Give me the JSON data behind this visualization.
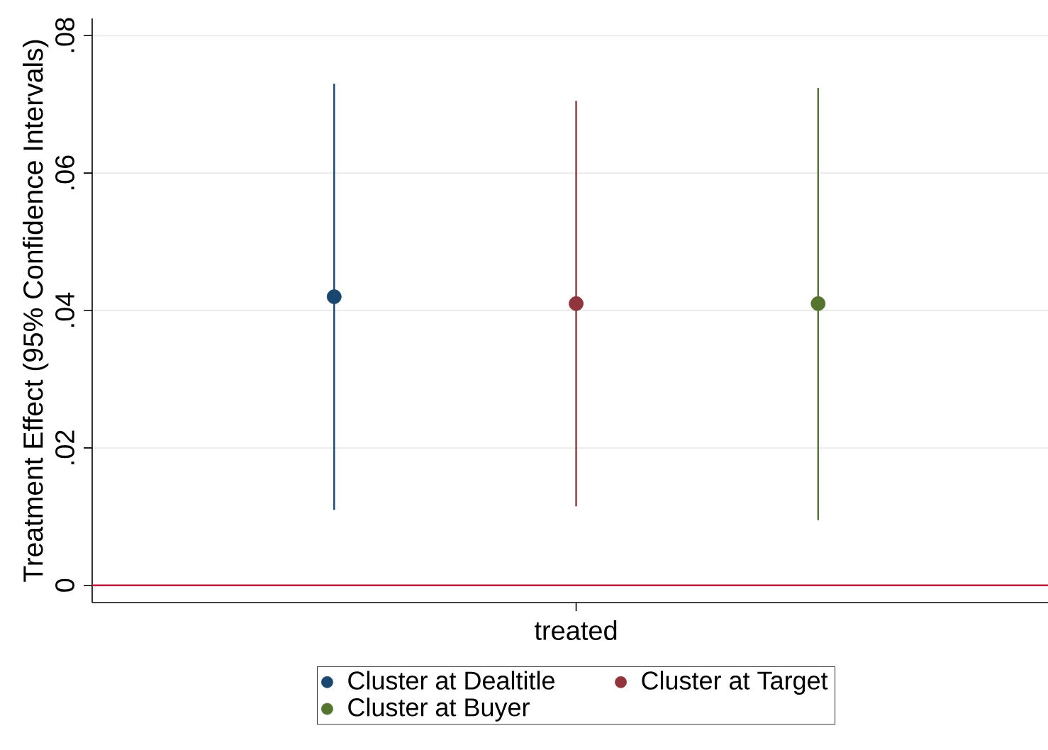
{
  "chart_data": {
    "type": "scatter",
    "ylabel": "Treatment Effect (95% Confidence Intervals)",
    "categories": [
      "treated"
    ],
    "series": [
      {
        "name": "Cluster at Dealtitle",
        "color": "#1a476f",
        "values": [
          0.042
        ],
        "errors": [
          [
            0.011,
            0.073
          ]
        ]
      },
      {
        "name": "Cluster at Target",
        "color": "#90353b",
        "values": [
          0.041
        ],
        "errors": [
          [
            0.0115,
            0.0705
          ]
        ]
      },
      {
        "name": "Cluster at Buyer",
        "color": "#55752f",
        "values": [
          0.041
        ],
        "errors": [
          [
            0.0095,
            0.0724
          ]
        ]
      }
    ],
    "ylim": [
      -0.0025,
      0.0825
    ],
    "yticks": [
      0,
      {
        "value": 0.02,
        "label": ".02"
      },
      {
        "value": 0.04,
        "label": ".04"
      },
      {
        "value": 0.06,
        "label": ".06"
      },
      {
        "value": 0.08,
        "label": ".08"
      }
    ],
    "ref_lines": [
      {
        "axis": "y",
        "value": 0,
        "color": "#c0143c"
      }
    ],
    "grid": "y",
    "legend": "bottom",
    "marker": "circle"
  }
}
